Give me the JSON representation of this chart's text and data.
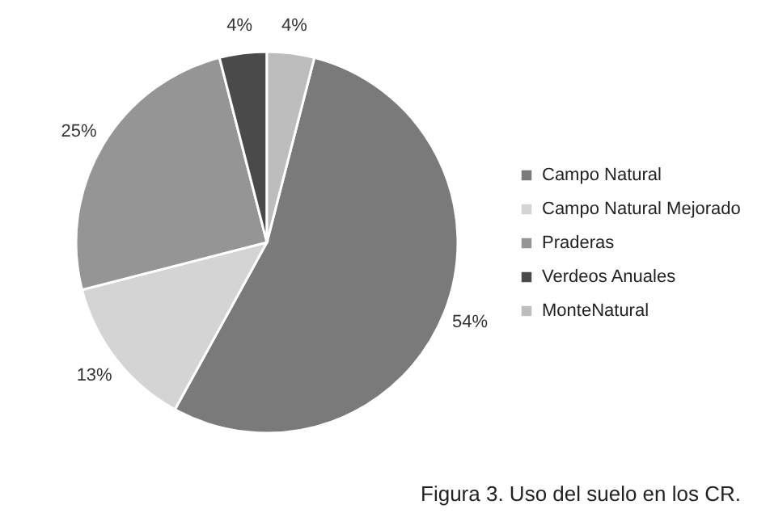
{
  "chart_data": {
    "type": "pie",
    "title": "Figura 3. Uso del suelo en los CR.",
    "categories": [
      "Campo Natural",
      "Campo Natural Mejorado",
      "Praderas",
      "Verdeos Anuales",
      "MonteNatural"
    ],
    "values": [
      54,
      13,
      25,
      4,
      4
    ],
    "colors": [
      "#7a7a7a",
      "#d4d4d4",
      "#959595",
      "#4a4a4a",
      "#bdbdbd"
    ],
    "value_labels": [
      "54%",
      "13%",
      "25%",
      "4%",
      "4%"
    ],
    "legend": "right"
  }
}
